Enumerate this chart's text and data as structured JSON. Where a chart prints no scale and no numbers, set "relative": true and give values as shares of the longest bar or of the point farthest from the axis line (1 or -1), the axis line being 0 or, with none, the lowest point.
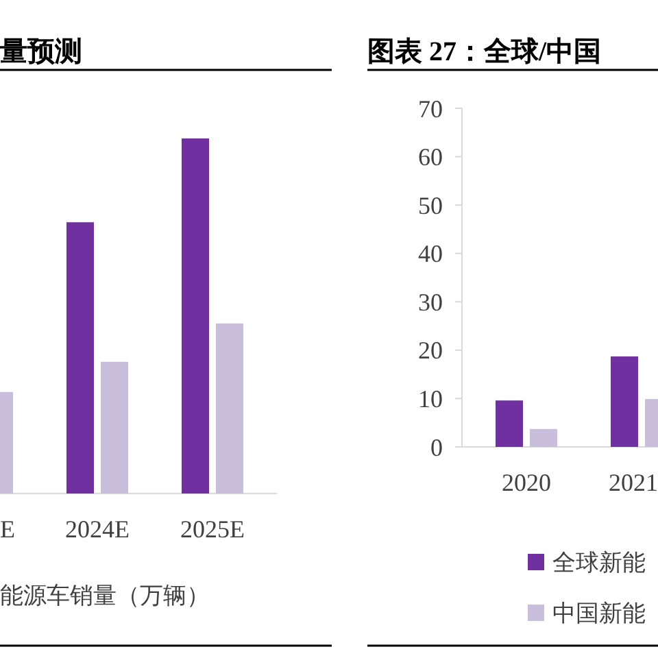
{
  "chart_data": [
    {
      "type": "bar",
      "title": "量预测",
      "relative": true,
      "categories": [
        "E",
        "2024E",
        "2025E"
      ],
      "series": [
        {
          "color": "#7030a0",
          "values": [
            null,
            0.764,
            1
          ]
        },
        {
          "color": "#c9bfdc",
          "values": [
            0.286,
            0.371,
            0.479
          ]
        }
      ],
      "annotations": [
        "能源车销量（万辆）"
      ]
    },
    {
      "type": "bar",
      "title": "图表 27：全球/中国",
      "categories": [
        "2020",
        "2021"
      ],
      "series": [
        {
          "name": "全球新能",
          "color": "#7030a0",
          "values": [
            9.6,
            18.7
          ]
        },
        {
          "name": "中国新能",
          "color": "#c9bfdc",
          "values": [
            3.7,
            9.9
          ]
        }
      ],
      "ylim": [
        0,
        70
      ],
      "yticks": [
        0,
        10,
        20,
        30,
        40,
        50,
        60,
        70
      ],
      "legend": "bottom"
    }
  ]
}
